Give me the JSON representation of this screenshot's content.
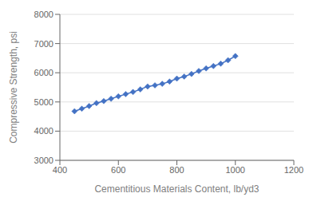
{
  "chart_data": {
    "type": "line",
    "xlabel": "Cementitious Materials Content, lb/yd3",
    "ylabel": "Compressive Strength, psi",
    "x": [
      450,
      475,
      500,
      525,
      550,
      575,
      600,
      625,
      650,
      675,
      700,
      725,
      750,
      775,
      800,
      825,
      850,
      875,
      900,
      925,
      950,
      975,
      1000
    ],
    "values": [
      4680,
      4770,
      4860,
      4960,
      5030,
      5110,
      5190,
      5270,
      5340,
      5430,
      5530,
      5570,
      5620,
      5700,
      5800,
      5870,
      5960,
      6060,
      6150,
      6230,
      6310,
      6430,
      6570
    ],
    "color": "#4472C4",
    "marker": "diamond",
    "xlim": [
      400,
      1200
    ],
    "ylim": [
      3000,
      8000
    ],
    "xticks": [
      400,
      600,
      800,
      1000,
      1200
    ],
    "yticks": [
      3000,
      4000,
      5000,
      6000,
      7000,
      8000
    ],
    "grid": true
  }
}
